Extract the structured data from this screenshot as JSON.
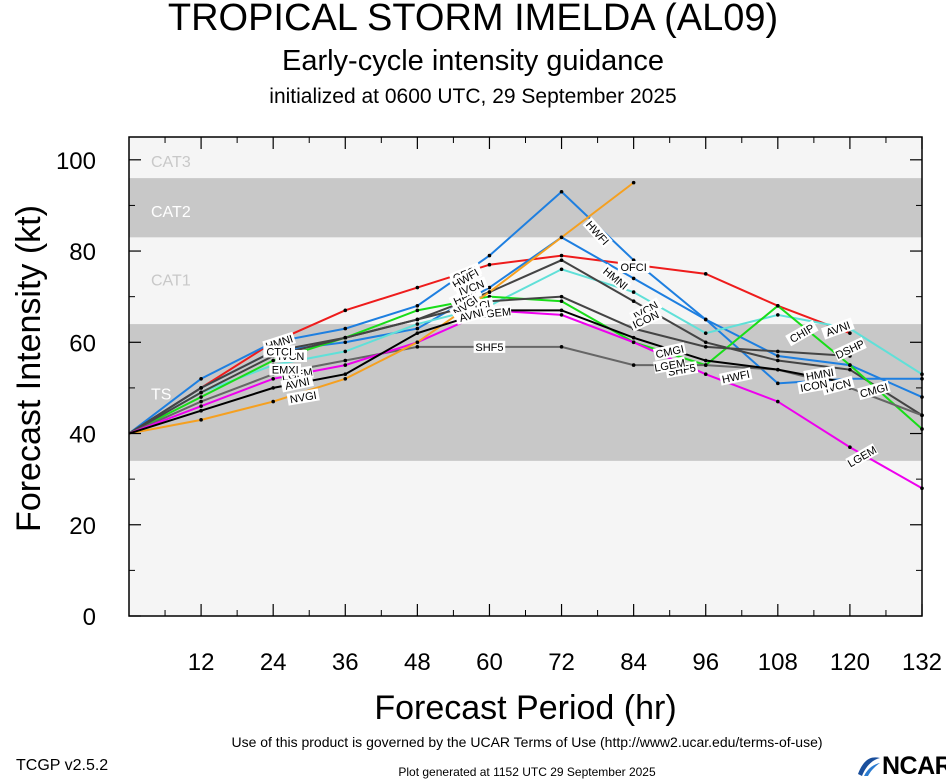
{
  "header": {
    "title": "TROPICAL STORM IMELDA (AL09)",
    "subtitle": "Early-cycle intensity guidance",
    "init": "initialized at 0600 UTC, 29 September 2025"
  },
  "footer": {
    "terms": "Use of this product is governed by the UCAR Terms of Use (http://www2.ucar.edu/terms-of-use)",
    "version": "TCGP v2.5.2",
    "generated": "Plot generated at 1152 UTC   29 September 2025",
    "logo": "NCAR"
  },
  "chart_data": {
    "type": "line",
    "xlabel": "Forecast Period (hr)",
    "ylabel": "Forecast Intensity (kt)",
    "xlim": [
      0,
      132
    ],
    "ylim": [
      0,
      105
    ],
    "xticks": [
      12,
      24,
      36,
      48,
      60,
      72,
      84,
      96,
      108,
      120,
      132
    ],
    "yticks": [
      0,
      20,
      40,
      60,
      80,
      100
    ],
    "bands": [
      {
        "label": "TS",
        "from": 34,
        "to": 64,
        "color": "#c8c8c8",
        "label_y": 49
      },
      {
        "label": "CAT1",
        "from": 64,
        "to": 83,
        "color": "#f5f5f5",
        "label_y": 74
      },
      {
        "label": "CAT2",
        "from": 83,
        "to": 96,
        "color": "#c8c8c8",
        "label_y": 89
      },
      {
        "label": "CAT3",
        "from": 96,
        "to": 105,
        "color": "#f5f5f5",
        "label_y": 100
      }
    ],
    "below_band_color": "#f5f5f5",
    "grid": false,
    "series": [
      {
        "name": "OFCI",
        "color": "#ee1c1c",
        "x": [
          0,
          12,
          24,
          36,
          48,
          60,
          72,
          84,
          96,
          108,
          120
        ],
        "y": [
          40,
          50,
          60,
          67,
          72,
          77,
          79,
          77,
          75,
          68,
          62
        ],
        "labels": [
          {
            "text": "OFCI",
            "x": 56,
            "y": 75,
            "angle": -22
          },
          {
            "text": "OFCI",
            "x": 84,
            "y": 76.5,
            "angle": 0
          }
        ]
      },
      {
        "name": "AVNI",
        "color": "#ee1c1c",
        "x": [],
        "y": [],
        "labels": [
          {
            "text": "AVNI",
            "x": 118,
            "y": 63,
            "angle": -20
          }
        ]
      },
      {
        "name": "HWFI",
        "color": "#1e7fe0",
        "x": [
          0,
          12,
          24,
          36,
          48,
          60,
          72,
          84,
          96,
          108,
          120,
          132
        ],
        "y": [
          40,
          52,
          60,
          63,
          68,
          79,
          93,
          78,
          65,
          51,
          52,
          52
        ],
        "labels": [
          {
            "text": "HWFI",
            "x": 56,
            "y": 74,
            "angle": -30
          },
          {
            "text": "HWFI",
            "x": 78,
            "y": 84,
            "angle": 48
          },
          {
            "text": "HWFI",
            "x": 101,
            "y": 52.5,
            "angle": -12
          }
        ]
      },
      {
        "name": "HMNI",
        "color": "#1e7fe0",
        "x": [
          0,
          12,
          24,
          36,
          48,
          60,
          72,
          84,
          96,
          108,
          120,
          132
        ],
        "y": [
          40,
          50,
          58,
          60,
          63,
          72,
          83,
          74,
          65,
          57,
          55,
          48
        ],
        "labels": [
          {
            "text": "HMNI",
            "x": 25,
            "y": 60,
            "angle": -18
          },
          {
            "text": "HMNI",
            "x": 81,
            "y": 74,
            "angle": 40
          },
          {
            "text": "HMNI",
            "x": 115,
            "y": 53,
            "angle": -10
          }
        ]
      },
      {
        "name": "HFIP",
        "color": "#60e0d8",
        "x": [
          0,
          12,
          24,
          36,
          48,
          60,
          72,
          84,
          96,
          108,
          120,
          132
        ],
        "y": [
          40,
          49,
          55,
          58,
          64,
          68,
          76,
          71,
          62,
          66,
          63,
          53
        ],
        "labels": [
          {
            "text": "HFIP",
            "x": 56,
            "y": 70,
            "angle": -25
          }
        ]
      },
      {
        "name": "IVCN",
        "color": "#444444",
        "x": [
          0,
          12,
          24,
          36,
          48,
          60,
          72,
          84,
          96,
          108,
          120,
          132
        ],
        "y": [
          40,
          50,
          58,
          61,
          65,
          71,
          78,
          69,
          60,
          56,
          54,
          44
        ],
        "labels": [
          {
            "text": "IVCN",
            "x": 27,
            "y": 57,
            "angle": 0
          },
          {
            "text": "IVCN",
            "x": 57,
            "y": 72,
            "angle": -20
          },
          {
            "text": "IVCN",
            "x": 86,
            "y": 67,
            "angle": -30
          },
          {
            "text": "IVCN",
            "x": 118,
            "y": 50.5,
            "angle": -15
          }
        ]
      },
      {
        "name": "ICON",
        "color": "#444444",
        "x": [],
        "y": [],
        "labels": [
          {
            "text": "ICON",
            "x": 86,
            "y": 65,
            "angle": -25
          },
          {
            "text": "ICON",
            "x": 114,
            "y": 50.5,
            "angle": -10
          }
        ]
      },
      {
        "name": "CTCI",
        "color": "#18dd18",
        "x": [
          0,
          12,
          24,
          36,
          48,
          60,
          72,
          84,
          96,
          108,
          120,
          132
        ],
        "y": [
          40,
          48,
          56,
          61,
          67,
          70,
          69,
          60,
          55,
          68,
          55,
          41
        ],
        "labels": [
          {
            "text": "CTCI",
            "x": 25,
            "y": 58,
            "angle": 0
          },
          {
            "text": "CTCI",
            "x": 58,
            "y": 68,
            "angle": -10
          },
          {
            "text": "CHIP",
            "x": 112,
            "y": 62,
            "angle": -30
          }
        ]
      },
      {
        "name": "DSHP",
        "color": "#444444",
        "x": [
          0,
          12,
          24,
          36,
          48,
          60,
          72,
          84,
          96,
          108,
          120
        ],
        "y": [
          40,
          49,
          57,
          61,
          65,
          69,
          70,
          63,
          59,
          58,
          57
        ],
        "labels": [
          {
            "text": "DSHP",
            "x": 120,
            "y": 58.5,
            "angle": -25
          }
        ]
      },
      {
        "name": "SHF5",
        "color": "#666666",
        "x": [
          0,
          12,
          24,
          36,
          48,
          60,
          72,
          84,
          96,
          108,
          120,
          132
        ],
        "y": [
          40,
          47,
          53,
          56,
          59,
          59,
          59,
          55,
          55,
          54,
          50,
          44
        ],
        "labels": [
          {
            "text": "SHF5",
            "x": 60,
            "y": 59,
            "angle": 0
          },
          {
            "text": "SHF5",
            "x": 92,
            "y": 54,
            "angle": -10
          }
        ]
      },
      {
        "name": "LGEM",
        "color": "#ee00ee",
        "x": [
          0,
          12,
          24,
          36,
          48,
          60,
          72,
          84,
          96,
          108,
          120,
          132
        ],
        "y": [
          40,
          46,
          52,
          55,
          60,
          67,
          66,
          60,
          53,
          47,
          37,
          28
        ],
        "labels": [
          {
            "text": "LGEM",
            "x": 28,
            "y": 53,
            "angle": -10
          },
          {
            "text": "LGEM",
            "x": 61,
            "y": 66.5,
            "angle": -5
          },
          {
            "text": "LGEM",
            "x": 90,
            "y": 55,
            "angle": -10
          },
          {
            "text": "LGEM",
            "x": 122,
            "y": 35,
            "angle": -30
          }
        ]
      },
      {
        "name": "NVGI",
        "color": "#f5a020",
        "x": [
          0,
          12,
          24,
          36,
          48,
          60,
          72,
          84
        ],
        "y": [
          40,
          43,
          47,
          52,
          60,
          71,
          83,
          95
        ],
        "labels": [
          {
            "text": "NVGI",
            "x": 29,
            "y": 48,
            "angle": -10
          },
          {
            "text": "NVGI",
            "x": 56,
            "y": 68,
            "angle": -35
          }
        ]
      },
      {
        "name": "AVNI",
        "color": "#000000",
        "x": [
          0,
          12,
          24,
          36,
          48,
          60,
          72,
          84,
          96,
          108,
          120
        ],
        "y": [
          40,
          45,
          50,
          53,
          62,
          67,
          67,
          61,
          56,
          54,
          51
        ],
        "labels": [
          {
            "text": "AVNI",
            "x": 28,
            "y": 51,
            "angle": -12
          },
          {
            "text": "AVNI",
            "x": 57,
            "y": 66,
            "angle": -15
          }
        ]
      },
      {
        "name": "CMGI",
        "color": "#000000",
        "x": [],
        "y": [],
        "labels": [
          {
            "text": "CMGI",
            "x": 90,
            "y": 58,
            "angle": -12
          },
          {
            "text": "CMGI",
            "x": 124,
            "y": 49.5,
            "angle": -15
          }
        ]
      },
      {
        "name": "EMXI",
        "color": "#000000",
        "x": [],
        "y": [],
        "labels": [
          {
            "text": "EMXI",
            "x": 26,
            "y": 54,
            "angle": 0
          }
        ]
      }
    ]
  }
}
